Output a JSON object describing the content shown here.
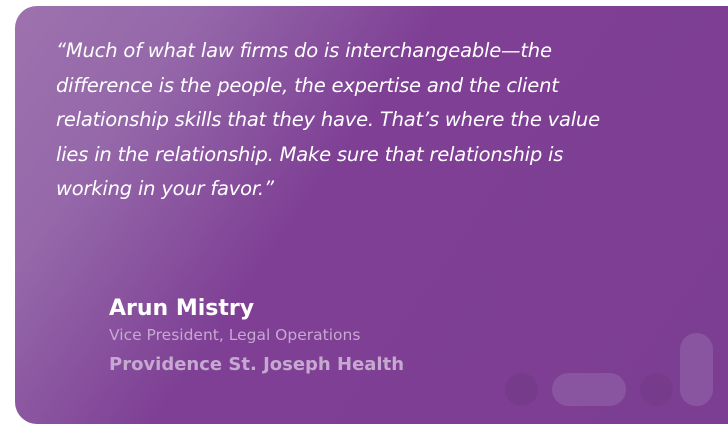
{
  "testimonial": {
    "quote": "“Much of what law firms do is interchangeable—the difference is the people, the expertise and the client relationship skills that they have. That’s where the value lies in the relationship. Make sure that relationship is working in your favor.”",
    "name": "Arun Mistry",
    "title": "Vice President, Legal Operations",
    "organization": "Providence St. Joseph Health"
  },
  "colors": {
    "background": "#7c3e93",
    "accent_text": "#c6a9d0"
  }
}
